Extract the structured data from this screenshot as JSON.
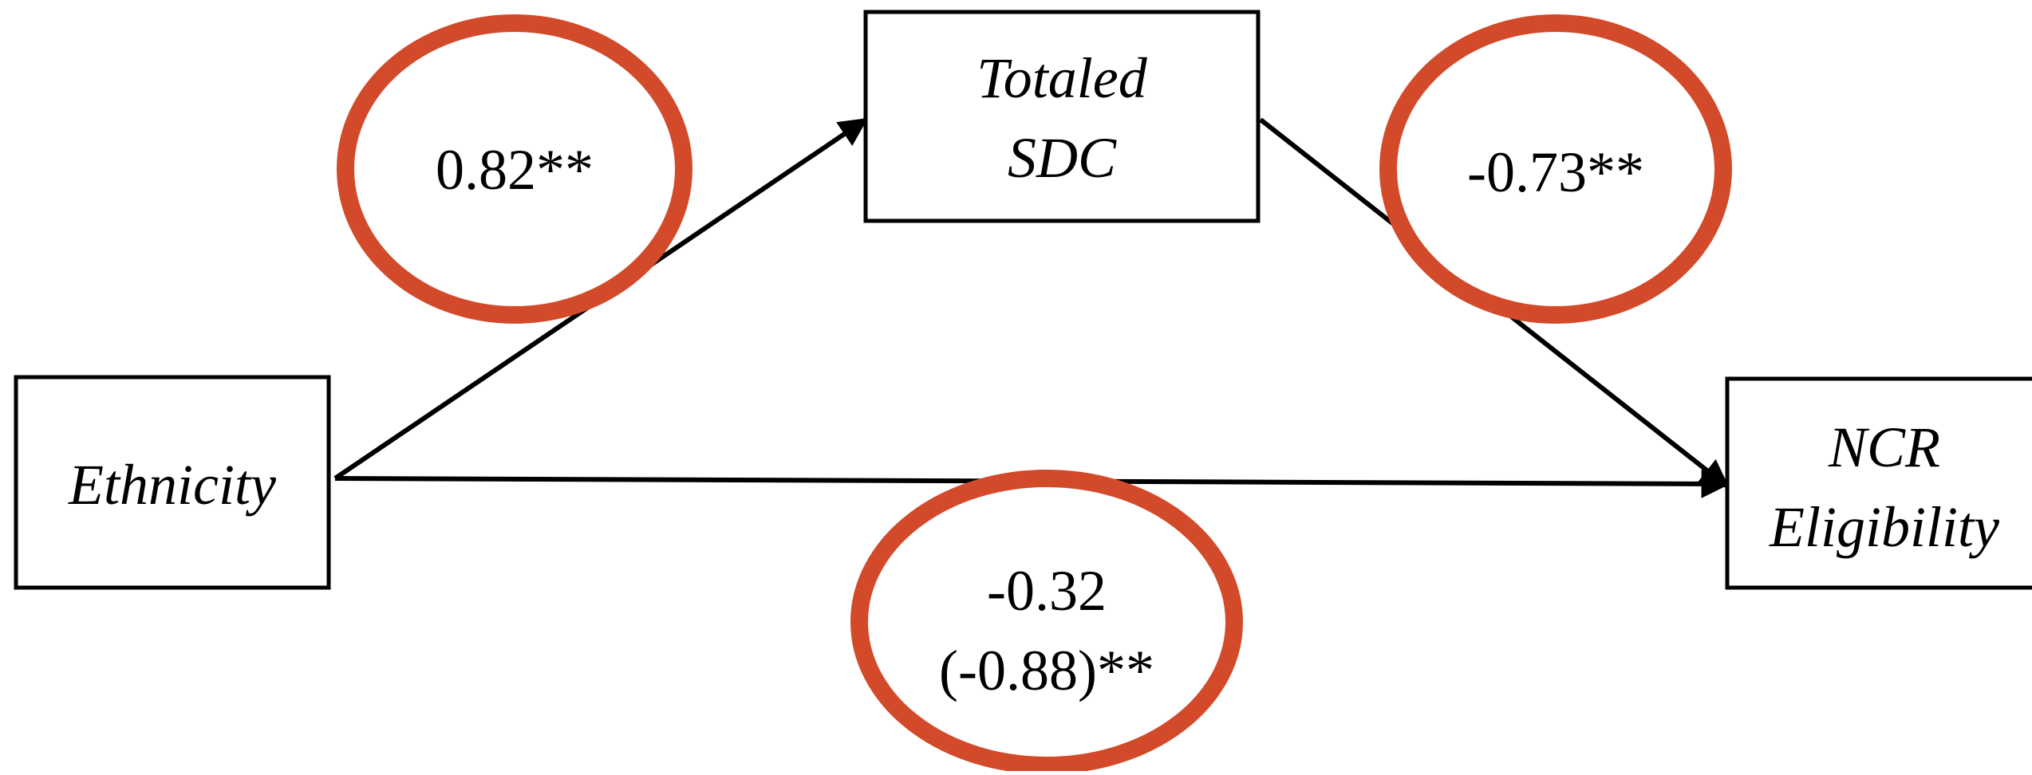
{
  "diagram": {
    "nodes": {
      "ethnicity": {
        "lines": [
          "Ethnicity"
        ]
      },
      "totaled_sdc": {
        "lines": [
          "Totaled",
          "SDC"
        ]
      },
      "ncr_eligibility": {
        "lines": [
          "NCR",
          "Eligibility"
        ]
      }
    },
    "paths": {
      "a": {
        "from": "Ethnicity",
        "to": "Totaled SDC",
        "lines": [
          "0.82**"
        ]
      },
      "b": {
        "from": "Totaled SDC",
        "to": "NCR Eligibility",
        "lines": [
          "-0.73**"
        ]
      },
      "c": {
        "from": "Ethnicity",
        "to": "NCR Eligibility",
        "lines": [
          "-0.32",
          "(-0.88)**"
        ]
      }
    },
    "colors": {
      "highlight_ellipse": "#D24A2A",
      "box_stroke": "#000000",
      "arrow": "#000000",
      "text": "#000000"
    }
  }
}
